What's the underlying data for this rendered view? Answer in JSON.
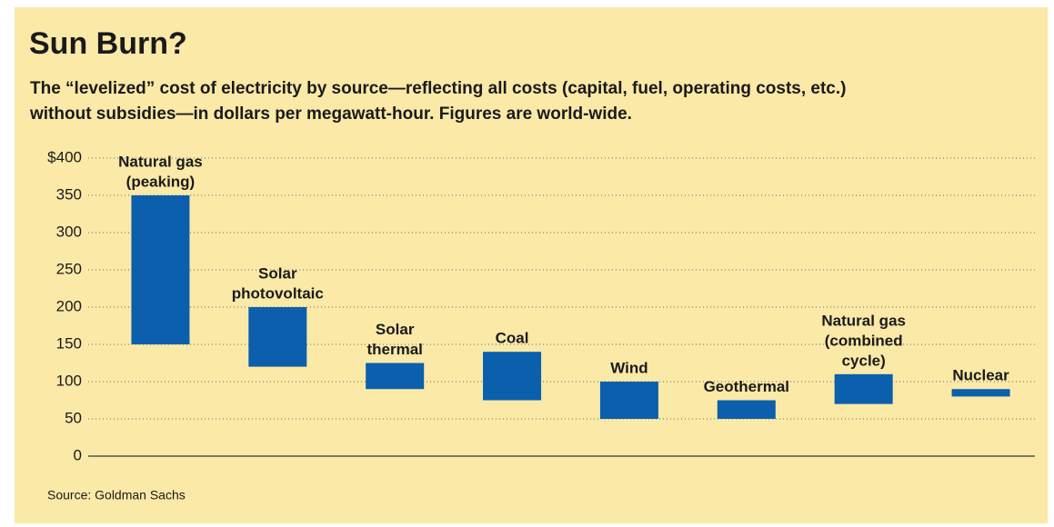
{
  "chart_data": {
    "type": "floating-bar",
    "title": "Sun Burn?",
    "subtitle": [
      "The “levelized” cost of electricity by source—reflecting all costs (capital, fuel, operating costs, etc.)",
      "without subsidies—in dollars per megawatt-hour. Figures are world-wide."
    ],
    "source": "Source: Goldman Sachs",
    "categories": [
      [
        "Natural gas",
        "(peaking)"
      ],
      [
        "Solar",
        "photovoltaic"
      ],
      [
        "Solar",
        "thermal"
      ],
      [
        "Coal"
      ],
      [
        "Wind"
      ],
      [
        "Geothermal"
      ],
      [
        "Natural gas",
        "(combined",
        "cycle)"
      ],
      [
        "Nuclear"
      ]
    ],
    "values": [
      [
        150,
        350
      ],
      [
        120,
        200
      ],
      [
        90,
        125
      ],
      [
        75,
        140
      ],
      [
        50,
        100
      ],
      [
        50,
        75
      ],
      [
        70,
        110
      ],
      [
        80,
        90
      ]
    ],
    "color": "#0b5fad",
    "ylim": [
      0,
      400
    ],
    "yticks": [
      0,
      50,
      100,
      150,
      200,
      250,
      300,
      350,
      {
        "value": 400,
        "label": "$400"
      }
    ],
    "grid": true
  }
}
